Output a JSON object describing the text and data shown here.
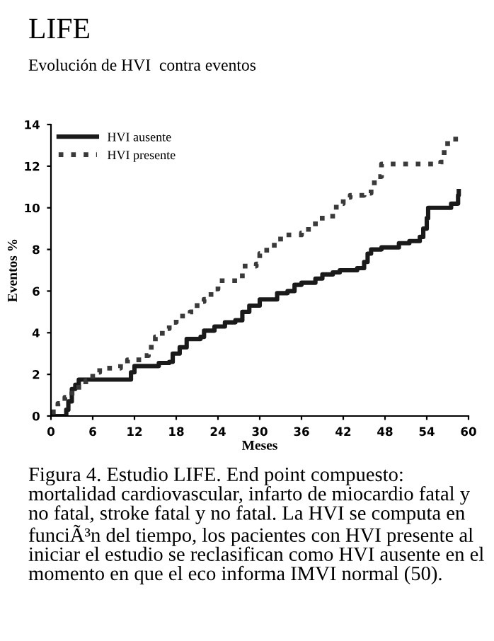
{
  "chart_data": {
    "type": "step",
    "title": "LIFE",
    "subtitle": "Evolución de HVI  contra eventos",
    "xlabel": "Meses",
    "ylabel": "Eventos %",
    "series": [
      {
        "name": "HVI ausente",
        "color": "#1a1a1a",
        "line_style": "solid",
        "x": [
          0,
          2,
          2.2,
          2.5,
          3,
          3.5,
          4,
          11,
          11.5,
          12,
          15,
          15.5,
          17,
          17.5,
          18.5,
          19.5,
          21.5,
          22,
          23.5,
          25,
          26.5,
          27.5,
          28.5,
          30,
          31.5,
          32.5,
          34,
          35,
          36,
          38,
          39,
          40.5,
          41.5,
          44,
          45,
          45.5,
          46,
          47.5,
          50,
          51.5,
          53,
          53.5,
          54,
          54.2,
          57,
          57.5,
          58.5,
          58.6
        ],
        "values": [
          0,
          0,
          0.3,
          0.7,
          1.3,
          1.5,
          1.75,
          1.75,
          2.1,
          2.4,
          2.4,
          2.55,
          2.6,
          3.0,
          3.3,
          3.7,
          3.8,
          4.1,
          4.3,
          4.5,
          4.6,
          5.0,
          5.3,
          5.6,
          5.6,
          5.9,
          6.0,
          6.3,
          6.4,
          6.6,
          6.8,
          6.9,
          7.0,
          7.1,
          7.4,
          7.8,
          8.0,
          8.1,
          8.3,
          8.4,
          8.6,
          9.0,
          9.5,
          10.0,
          10.0,
          10.2,
          10.6,
          10.8
        ]
      },
      {
        "name": "HVI presente",
        "color": "#3a3a3a",
        "line_style": "dotted",
        "x": [
          0,
          1,
          2,
          3,
          4,
          5,
          6,
          7,
          10,
          11,
          13,
          14,
          15,
          16,
          17,
          18,
          20,
          21,
          22,
          23,
          24,
          27,
          27.5,
          29.5,
          30,
          31,
          33,
          36,
          37,
          38,
          40,
          41,
          42,
          43,
          45,
          46,
          47,
          47.5,
          56,
          56.5,
          57,
          58.5
        ],
        "values": [
          0.2,
          0.6,
          0.9,
          1.1,
          1.5,
          1.7,
          2.1,
          2.3,
          2.5,
          2.7,
          2.9,
          3.3,
          3.8,
          4.2,
          4.5,
          4.8,
          5.0,
          5.5,
          5.6,
          6.1,
          6.5,
          6.6,
          7.2,
          7.3,
          7.8,
          8.2,
          8.7,
          8.8,
          9.1,
          9.5,
          9.6,
          10.2,
          10.5,
          10.6,
          10.7,
          11.2,
          11.5,
          12.1,
          12.2,
          12.8,
          13.3,
          13.3
        ]
      }
    ],
    "xlim": [
      0,
      60
    ],
    "ylim": [
      0,
      14
    ],
    "xticks": [
      0,
      6,
      12,
      18,
      24,
      30,
      36,
      42,
      48,
      54,
      60
    ],
    "yticks": [
      0,
      2,
      4,
      6,
      8,
      10,
      12,
      14
    ],
    "grid": false,
    "legend": "top left",
    "annotations": [
      "Figura 4. Estudio LIFE. End point compuesto: mortalidad cardiovascular, infarto de miocardio fatal y no fatal, stroke fatal y no fatal. La HVI se computa en funciÃ³n del tiempo, los pacientes con HVI presente al iniciar el estudio se reclasifican como HVI ausente en el momento en que el eco informa IMVI normal (50)."
    ]
  }
}
